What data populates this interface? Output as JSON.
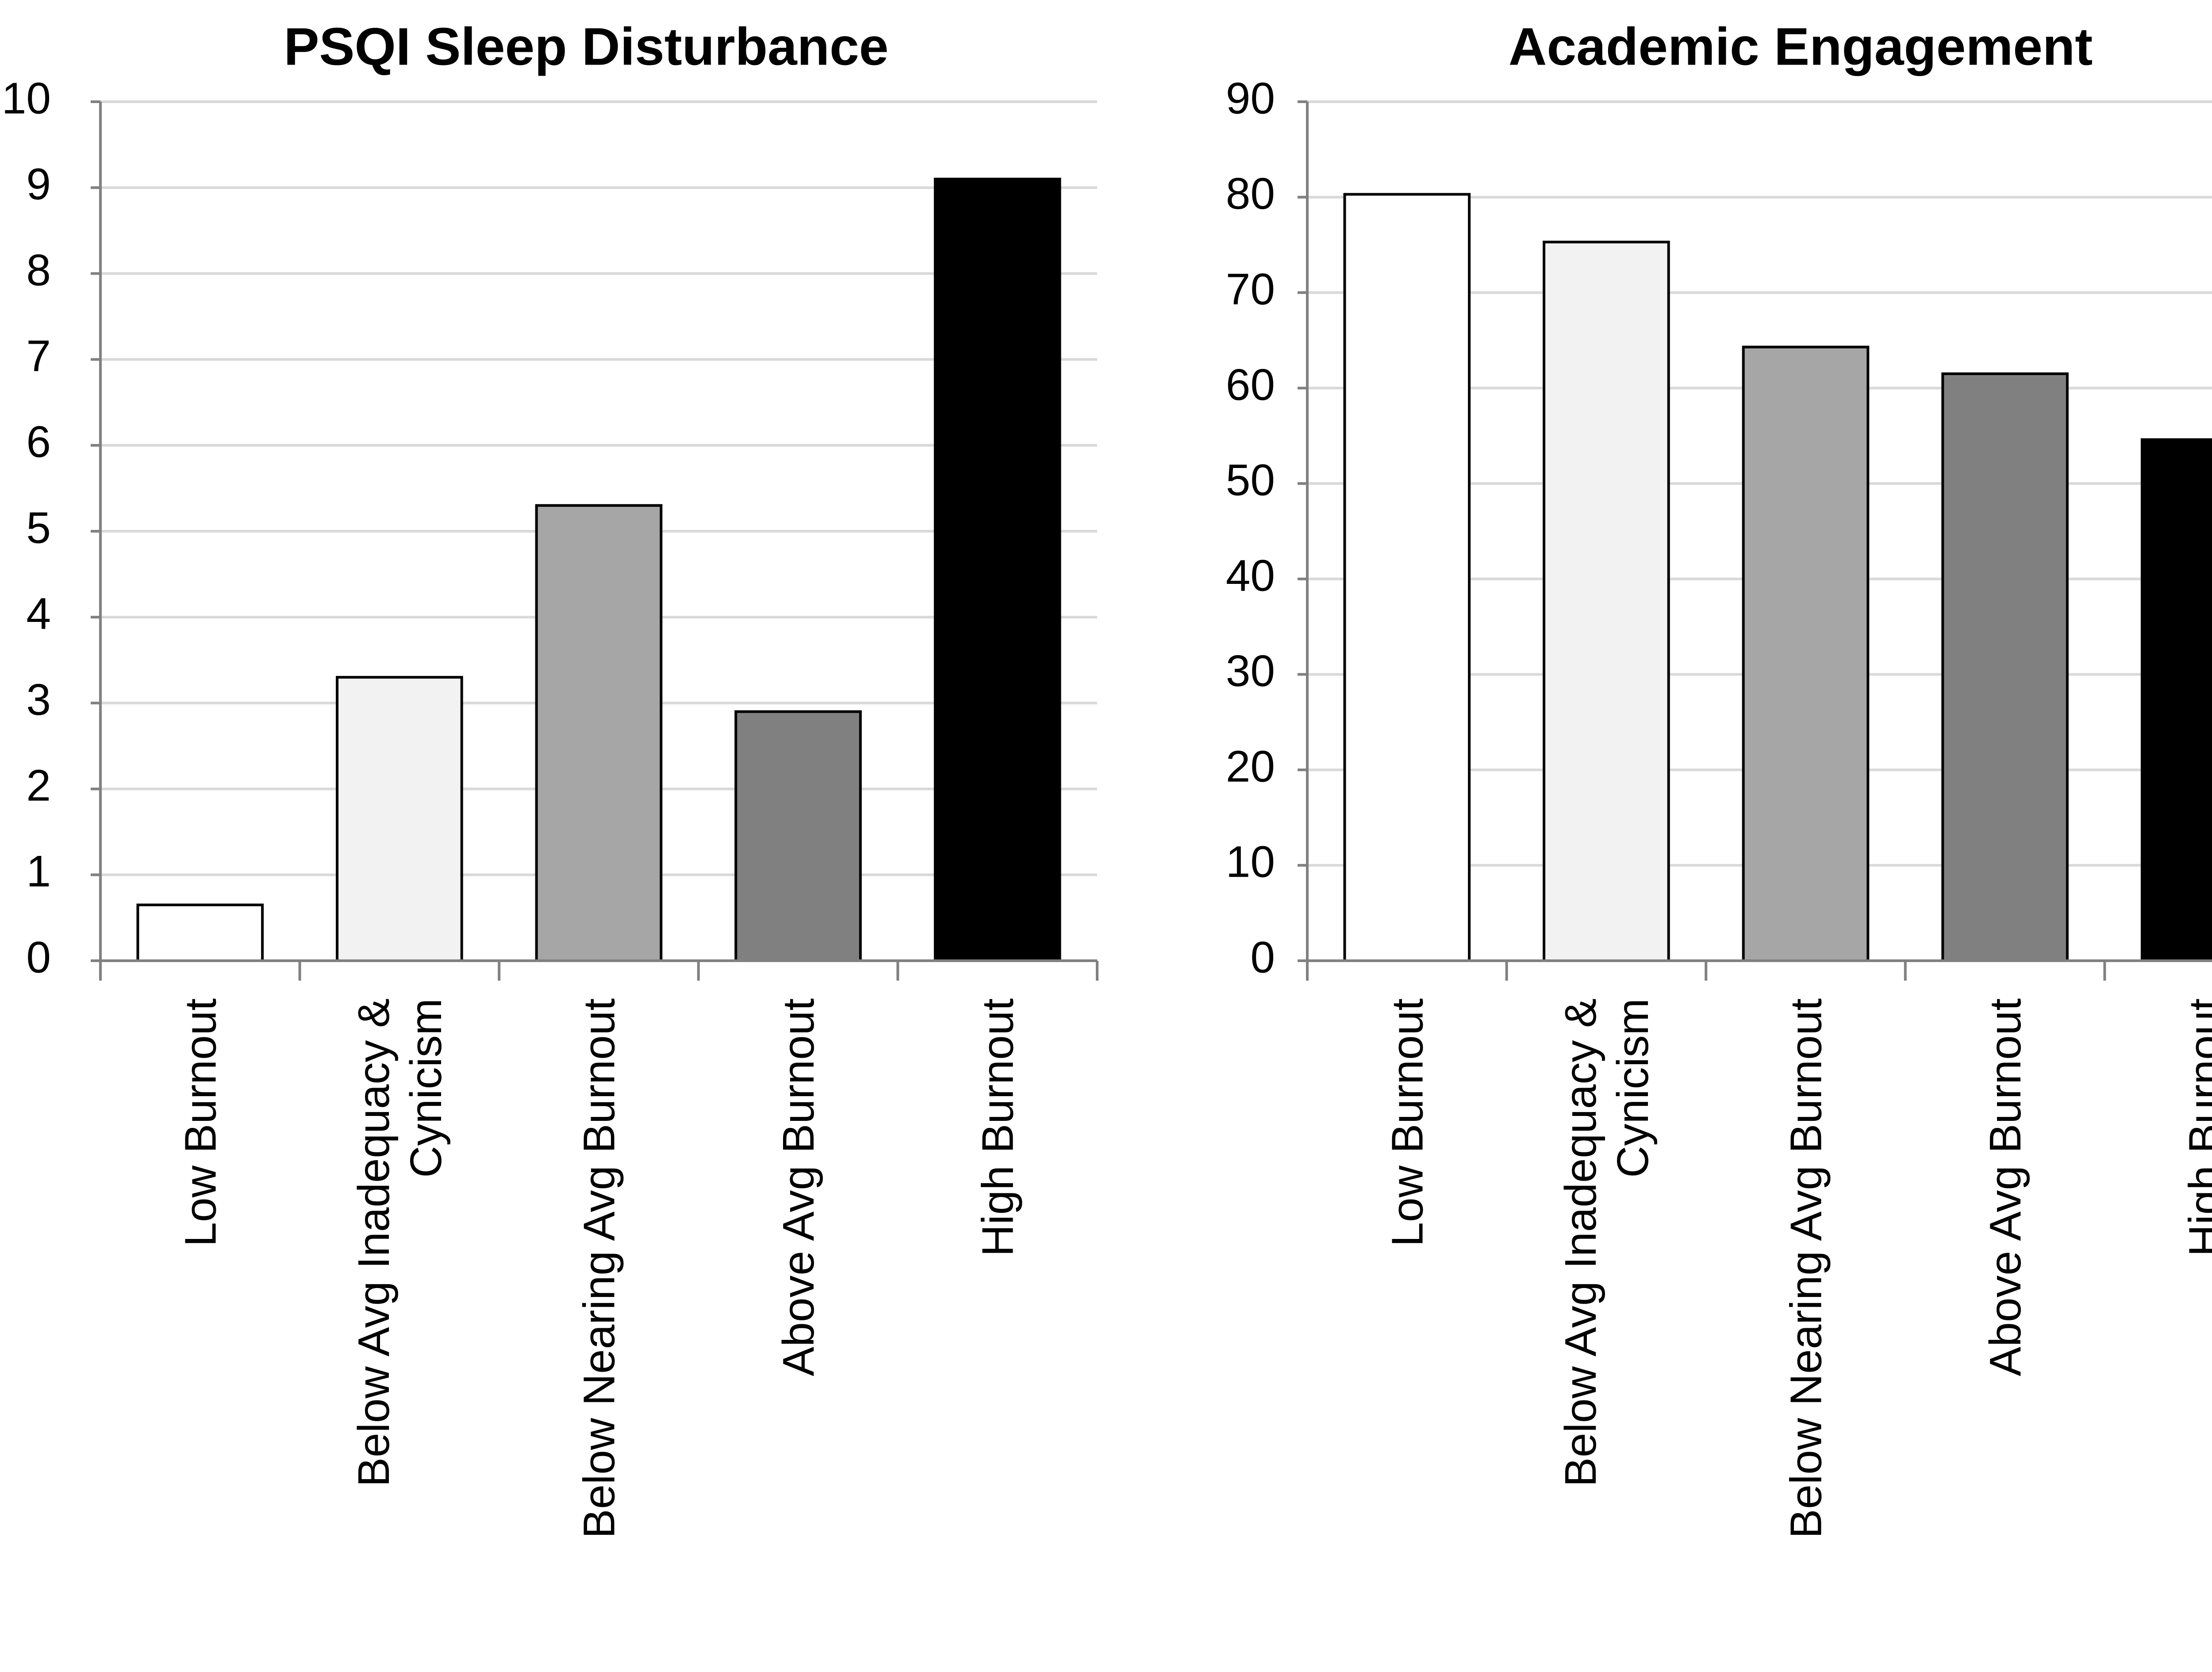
{
  "chart_data": [
    {
      "type": "bar",
      "title": "PSQI Sleep Disturbance",
      "xlabel": "",
      "ylabel": "",
      "categories": [
        [
          "Low Burnout"
        ],
        [
          "Below Avg Inadequacy &",
          "Cynicism"
        ],
        [
          "Below Nearing Avg Burnout"
        ],
        [
          "Above Avg Burnout"
        ],
        [
          "High Burnout"
        ]
      ],
      "values": [
        0.65,
        3.3,
        5.3,
        2.9,
        9.1
      ],
      "bar_colors": [
        "#ffffff",
        "#f2f2f2",
        "#a6a6a6",
        "#808080",
        "#000000"
      ],
      "ylim": [
        0,
        10
      ],
      "yticks": [
        0,
        1,
        2,
        3,
        4,
        5,
        6,
        7,
        8,
        9,
        10
      ],
      "grid": true,
      "legend": "none"
    },
    {
      "type": "bar",
      "title": "Academic Engagement",
      "xlabel": "",
      "ylabel": "",
      "categories": [
        [
          "Low Burnout"
        ],
        [
          "Below Avg Inadequacy &",
          "Cynicism"
        ],
        [
          "Below Nearing Avg Burnout"
        ],
        [
          "Above Avg Burnout"
        ],
        [
          "High Burnout"
        ]
      ],
      "values": [
        80.3,
        75.3,
        64.3,
        61.5,
        54.6
      ],
      "bar_colors": [
        "#ffffff",
        "#f2f2f2",
        "#a6a6a6",
        "#808080",
        "#000000"
      ],
      "ylim": [
        0,
        90
      ],
      "yticks": [
        0,
        10,
        20,
        30,
        40,
        50,
        60,
        70,
        80,
        90
      ],
      "grid": true,
      "legend": "none"
    }
  ]
}
